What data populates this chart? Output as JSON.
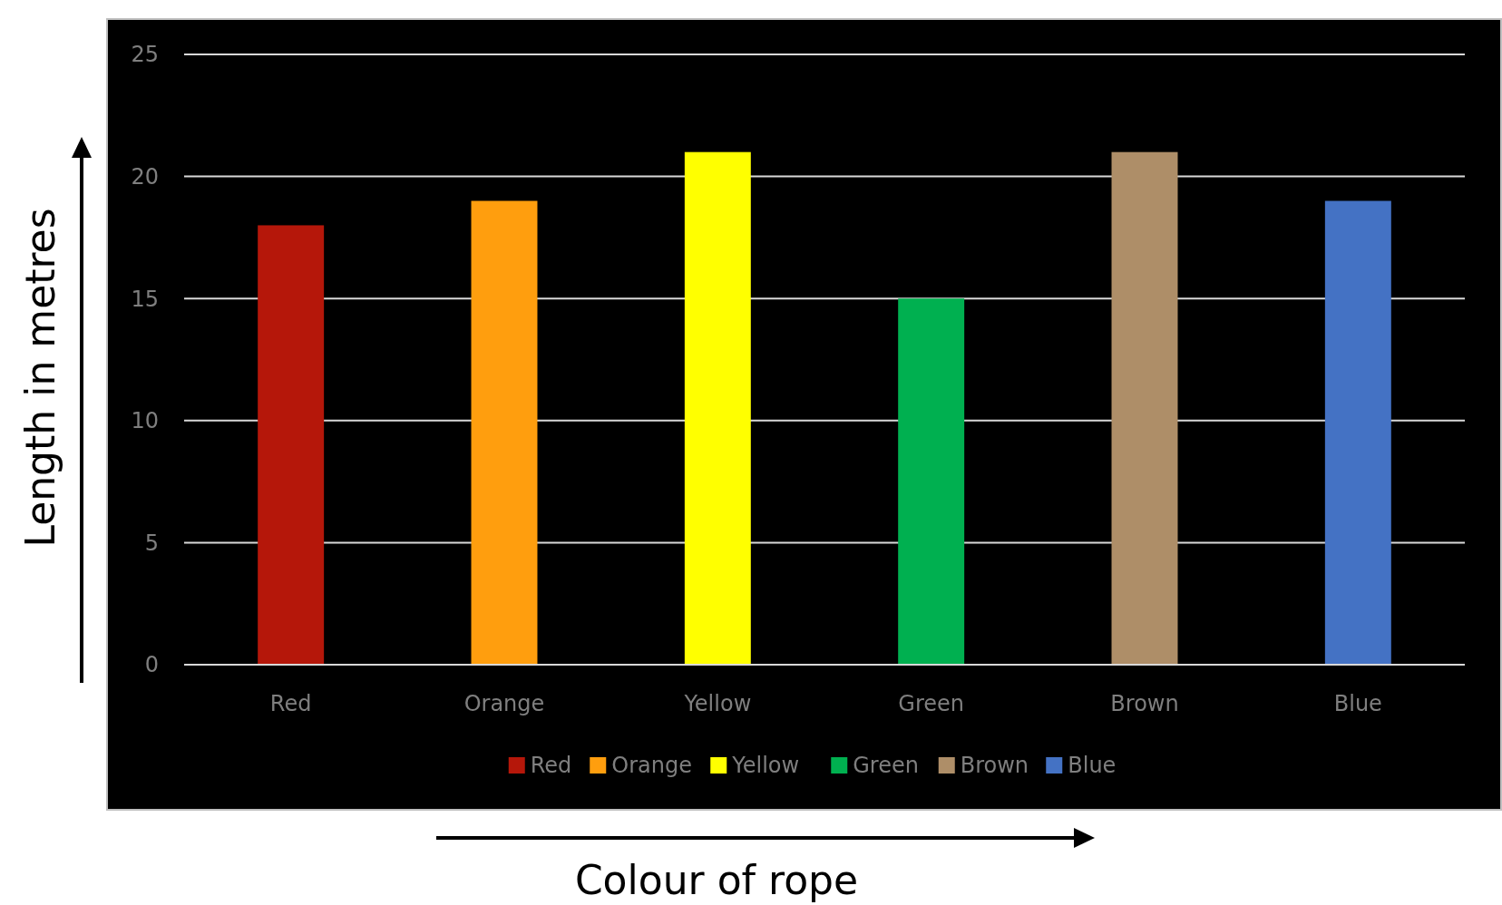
{
  "chart_data": {
    "type": "bar",
    "xlabel": "Colour of rope",
    "ylabel": "Length in metres",
    "categories": [
      "Red",
      "Orange",
      "Yellow",
      "Green",
      "Brown",
      "Blue"
    ],
    "series": [
      {
        "name": "Red",
        "color": "#b5170a",
        "values": [
          18,
          null,
          null,
          null,
          null,
          null
        ]
      },
      {
        "name": "Orange",
        "color": "#ff9e0e",
        "values": [
          null,
          19,
          null,
          null,
          null,
          null
        ]
      },
      {
        "name": "Yellow",
        "color": "#ffff00",
        "values": [
          null,
          null,
          21,
          null,
          null,
          null
        ]
      },
      {
        "name": "Green",
        "color": "#00b050",
        "values": [
          null,
          null,
          null,
          15,
          null,
          null
        ]
      },
      {
        "name": "Brown",
        "color": "#ae8e68",
        "values": [
          null,
          null,
          null,
          null,
          21,
          null
        ]
      },
      {
        "name": "Blue",
        "color": "#4472c4",
        "values": [
          null,
          null,
          null,
          null,
          null,
          19
        ]
      }
    ],
    "stacked": true,
    "ylim": [
      0,
      25
    ],
    "yticks": [
      0,
      5,
      10,
      15,
      20,
      25
    ],
    "grid": "y",
    "legend": "bottom"
  }
}
